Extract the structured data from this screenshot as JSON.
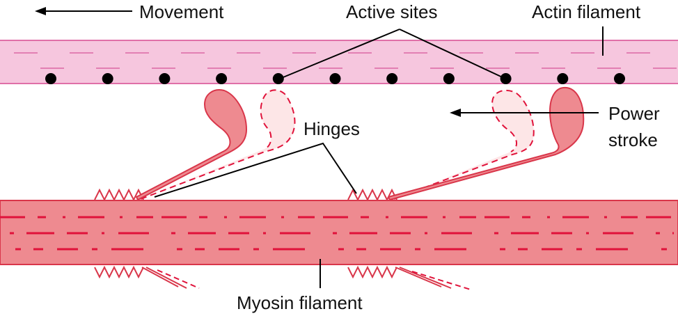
{
  "labels": {
    "movement": "Movement",
    "active_sites": "Active sites",
    "actin_filament": "Actin filament",
    "power_stroke_line1": "Power",
    "power_stroke_line2": "stroke",
    "hinges": "Hinges",
    "myosin_filament": "Myosin filament"
  },
  "colors": {
    "actin_fill": "#f6c6de",
    "actin_edge": "#e06fa8",
    "actin_dash": "#e27fb3",
    "myosin_fill": "#ee8a90",
    "myosin_edge": "#d9364a",
    "myosin_dash": "#e0123a",
    "head_solid": "#ee8a90",
    "head_ghost": "#fde6e7",
    "head_edge": "#d9364a",
    "active_site": "#000000",
    "leader_line": "#000000"
  },
  "icons": [
    "movement-arrow-icon",
    "power-stroke-arrow-icon",
    "active-site-dot-icon",
    "hinge-zigzag-icon"
  ],
  "active_site_count": 11
}
